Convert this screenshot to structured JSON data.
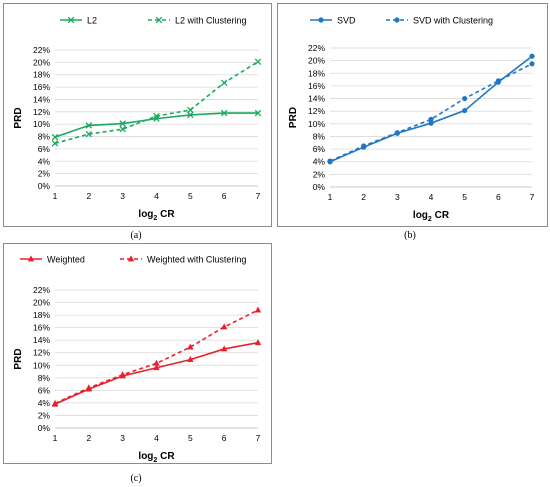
{
  "chart_data": [
    {
      "id": "a",
      "type": "line",
      "caption": "(a)",
      "xlabel": "log",
      "xlabel_sub": "2",
      "xlabel_tail": " CR",
      "ylabel": "PRD",
      "x": [
        1,
        2,
        3,
        4,
        5,
        6,
        7
      ],
      "ylim": [
        0,
        22
      ],
      "yticks": [
        0,
        2,
        4,
        6,
        8,
        10,
        12,
        14,
        16,
        18,
        20,
        22
      ],
      "ytick_suffix": "%",
      "grid": "horizontal",
      "legend_position": "top",
      "series": [
        {
          "name": "L2",
          "values": [
            7.9,
            9.8,
            10.1,
            10.9,
            11.5,
            11.8,
            11.8
          ],
          "color": "#1aab5c",
          "dash": "solid",
          "marker": "x"
        },
        {
          "name": "L2 with Clustering",
          "values": [
            6.9,
            8.4,
            9.2,
            11.3,
            12.3,
            16.7,
            20.1
          ],
          "color": "#1aab5c",
          "dash": "dashed",
          "marker": "x"
        }
      ]
    },
    {
      "id": "b",
      "type": "line",
      "caption": "(b)",
      "xlabel": "log",
      "xlabel_sub": "2",
      "xlabel_tail": " CR",
      "ylabel": "PRD",
      "x": [
        1,
        2,
        3,
        4,
        5,
        6,
        7
      ],
      "ylim": [
        0,
        22
      ],
      "yticks": [
        0,
        2,
        4,
        6,
        8,
        10,
        12,
        14,
        16,
        18,
        20,
        22
      ],
      "ytick_suffix": "%",
      "grid": "horizontal",
      "legend_position": "top",
      "series": [
        {
          "name": "SVD",
          "values": [
            4.0,
            6.3,
            8.5,
            10.1,
            12.1,
            16.6,
            20.7
          ],
          "color": "#1f77c4",
          "dash": "solid",
          "marker": "circle"
        },
        {
          "name": "SVD with Clustering",
          "values": [
            4.1,
            6.5,
            8.6,
            10.7,
            14.0,
            16.8,
            19.5
          ],
          "color": "#1f77c4",
          "dash": "dashed",
          "marker": "circle"
        }
      ]
    },
    {
      "id": "c",
      "type": "line",
      "caption": "(c)",
      "xlabel": "log",
      "xlabel_sub": "2",
      "xlabel_tail": " CR",
      "ylabel": "PRD",
      "x": [
        1,
        2,
        3,
        4,
        5,
        6,
        7
      ],
      "ylim": [
        0,
        22
      ],
      "yticks": [
        0,
        2,
        4,
        6,
        8,
        10,
        12,
        14,
        16,
        18,
        20,
        22
      ],
      "ytick_suffix": "%",
      "grid": "horizontal",
      "legend_position": "top",
      "series": [
        {
          "name": "Weighted",
          "values": [
            3.8,
            6.2,
            8.3,
            9.6,
            10.9,
            12.6,
            13.6
          ],
          "color": "#e8202a",
          "dash": "solid",
          "marker": "triangle"
        },
        {
          "name": "Weighted with Clustering",
          "values": [
            3.9,
            6.4,
            8.5,
            10.3,
            12.9,
            16.1,
            18.8
          ],
          "color": "#e8202a",
          "dash": "dashed",
          "marker": "triangle"
        }
      ]
    }
  ]
}
